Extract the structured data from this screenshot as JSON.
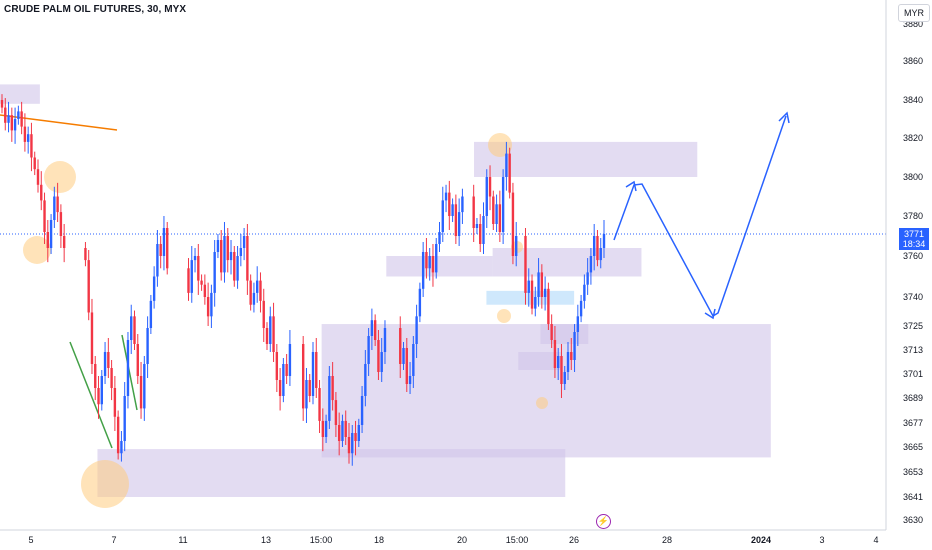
{
  "header": {
    "title": "CRUDE PALM OIL FUTURES, 30, MYX",
    "currency_label": "MYR"
  },
  "price_badge": {
    "value": "3771",
    "countdown": "18:34",
    "color": "#2962ff"
  },
  "colors": {
    "up_candle": "#2962ff",
    "down_candle": "#f23645",
    "zone_fill": "#d1c4e9",
    "highlight_zone_fill": "#bbdefb",
    "circle_fill": "#ffcc80",
    "projection_arrow": "#2962ff",
    "trend_line": "#f57c00",
    "green_line": "#43a047",
    "last_price_line": "#2962ff"
  },
  "chart_data": {
    "type": "candlestick",
    "title": "CRUDE PALM OIL FUTURES, 30, MYX",
    "y_ticks": [
      3880,
      3860,
      3840,
      3820,
      3800,
      3780,
      3760,
      3740,
      3725,
      3713,
      3701,
      3689,
      3677,
      3665,
      3653,
      3641,
      3630
    ],
    "x_ticks": [
      {
        "label": "5",
        "bold": false
      },
      {
        "label": "7",
        "bold": false
      },
      {
        "label": "11",
        "bold": false
      },
      {
        "label": "13",
        "bold": false
      },
      {
        "label": "15:00",
        "bold": false
      },
      {
        "label": "18",
        "bold": false
      },
      {
        "label": "20",
        "bold": false
      },
      {
        "label": "15:00",
        "bold": false
      },
      {
        "label": "26",
        "bold": false
      },
      {
        "label": "28",
        "bold": false
      },
      {
        "label": "2024",
        "bold": true
      },
      {
        "label": "3",
        "bold": false
      },
      {
        "label": "4",
        "bold": false
      }
    ],
    "last_price": 3771,
    "series": [
      {
        "name": "",
        "closes": [
          3836,
          3828,
          3832,
          3824,
          3830,
          3834,
          3826,
          3818,
          3822,
          3810,
          3804,
          3796,
          3788,
          3772,
          3764,
          3778,
          3790,
          3782,
          3770,
          3764,
          3758,
          3732,
          3706,
          3694,
          3686,
          3700,
          3712,
          3704,
          3694,
          3680,
          3662,
          3668,
          3690,
          3718,
          3730,
          3716,
          3700,
          3684,
          3706,
          3724,
          3738,
          3750,
          3766,
          3760,
          3774,
          3754,
          3742,
          3758,
          3760,
          3748,
          3746,
          3740,
          3730,
          3742,
          3762,
          3768,
          3752,
          3770,
          3758,
          3762,
          3748,
          3760,
          3764,
          3770,
          3748,
          3736,
          3742,
          3748,
          3738,
          3724,
          3716,
          3730,
          3712,
          3698,
          3690,
          3706,
          3700,
          3716,
          3684,
          3698,
          3690,
          3712,
          3694,
          3678,
          3670,
          3678,
          3700,
          3688,
          3676,
          3668,
          3678,
          3670,
          3662,
          3672,
          3668,
          3676,
          3690,
          3706,
          3720,
          3728,
          3718,
          3702,
          3712,
          3724,
          3706,
          3714,
          3696,
          3700,
          3716,
          3730,
          3744,
          3762,
          3754,
          3760,
          3752,
          3766,
          3772,
          3788,
          3792,
          3780,
          3786,
          3770,
          3782,
          3790,
          3774,
          3776,
          3766,
          3780,
          3800,
          3790,
          3776,
          3786,
          3772,
          3800,
          3812,
          3792,
          3760,
          3770,
          3742,
          3748,
          3734,
          3740,
          3752,
          3740,
          3744,
          3726,
          3718,
          3704,
          3710,
          3696,
          3702,
          3712,
          3708,
          3722,
          3730,
          3738,
          3746,
          3752,
          3760,
          3770,
          3758,
          3764,
          3771
        ]
      }
    ],
    "annotations": {
      "zones": [
        {
          "x0": 0,
          "x1": 0.045,
          "y_top": 3848,
          "y_bot": 3838,
          "color": "zone"
        },
        {
          "x0": 0.535,
          "x1": 0.787,
          "y_top": 3818,
          "y_bot": 3800,
          "color": "zone"
        },
        {
          "x0": 0.436,
          "x1": 0.556,
          "y_top": 3760,
          "y_bot": 3750,
          "color": "zone"
        },
        {
          "x0": 0.556,
          "x1": 0.724,
          "y_top": 3764,
          "y_bot": 3750,
          "color": "zone"
        },
        {
          "x0": 0.549,
          "x1": 0.648,
          "y_top": 3743,
          "y_bot": 3736,
          "color": "highlight"
        },
        {
          "x0": 0.363,
          "x1": 0.87,
          "y_top": 3726,
          "y_bot": 3660,
          "color": "zone"
        },
        {
          "x0": 0.61,
          "x1": 0.664,
          "y_top": 3726,
          "y_bot": 3716,
          "color": "zone"
        },
        {
          "x0": 0.585,
          "x1": 0.633,
          "y_top": 3712,
          "y_bot": 3703,
          "color": "zone"
        },
        {
          "x0": 0.11,
          "x1": 0.638,
          "y_top": 3664,
          "y_bot": 3641,
          "color": "zone"
        }
      ]
    }
  }
}
